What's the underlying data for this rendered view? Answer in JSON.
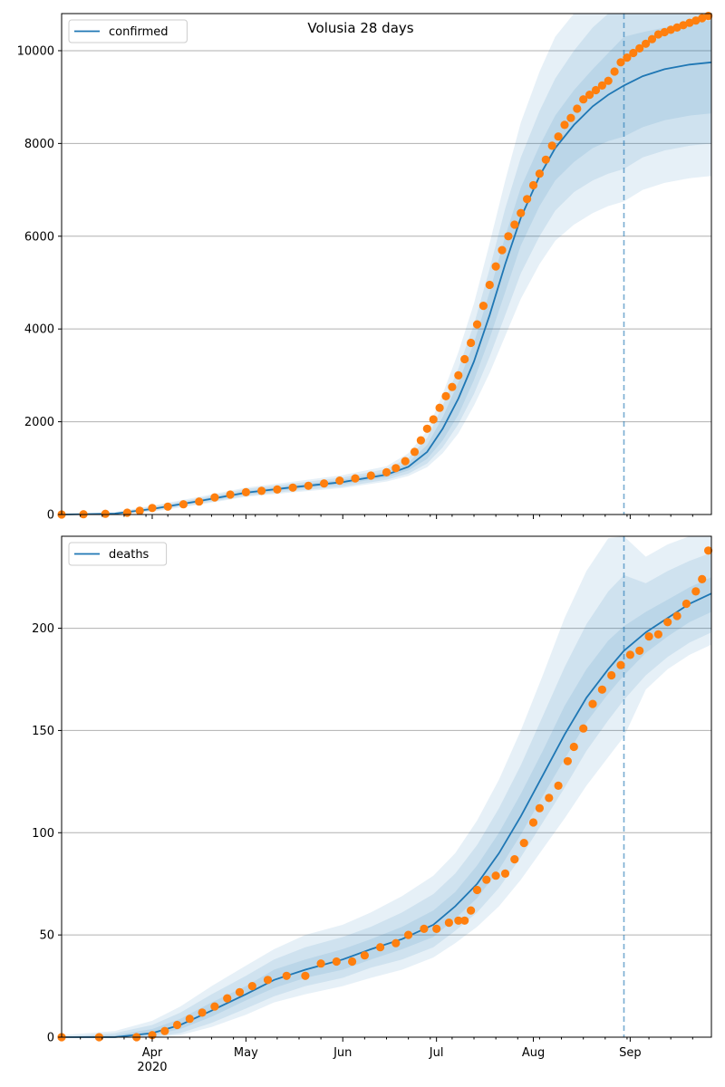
{
  "title": "Volusia 28 days",
  "colors": {
    "model_line": "#1f77b4",
    "observed": "#ff7f0e",
    "band": "#1f77b4",
    "grid": "#b0b0b0",
    "axis": "#000000"
  },
  "chart_data": [
    {
      "type": "line",
      "name": "confirmed",
      "legend": "confirmed",
      "legend_position": "top-left",
      "grid": "y",
      "xlim": [
        "2020-03-03",
        "2020-09-27"
      ],
      "ylim": [
        0,
        10800
      ],
      "yticks": [
        0,
        2000,
        4000,
        6000,
        8000,
        10000
      ],
      "ytick_labels": [
        "0",
        "2000",
        "4000",
        "6000",
        "8000",
        "10000"
      ],
      "forecast_start": "2020-08-30",
      "model": {
        "label": "confirmed",
        "x": [
          "2020-03-03",
          "2020-03-20",
          "2020-04-01",
          "2020-04-15",
          "2020-05-01",
          "2020-05-15",
          "2020-06-01",
          "2020-06-15",
          "2020-06-22",
          "2020-06-28",
          "2020-07-03",
          "2020-07-08",
          "2020-07-13",
          "2020-07-18",
          "2020-07-23",
          "2020-07-28",
          "2020-08-03",
          "2020-08-08",
          "2020-08-14",
          "2020-08-20",
          "2020-08-25",
          "2020-08-30",
          "2020-09-05",
          "2020-09-12",
          "2020-09-20",
          "2020-09-27"
        ],
        "y": [
          0,
          20,
          120,
          280,
          470,
          580,
          700,
          860,
          1030,
          1350,
          1850,
          2500,
          3300,
          4300,
          5400,
          6400,
          7300,
          7900,
          8400,
          8800,
          9050,
          9250,
          9450,
          9600,
          9700,
          9750
        ],
        "bands": [
          {
            "lower": [
              0,
              10,
              100,
              250,
              430,
              540,
              650,
              800,
              950,
              1200,
              1600,
              2150,
              2900,
              3800,
              4800,
              5800,
              6650,
              7200,
              7600,
              7900,
              8050,
              8150,
              8350,
              8500,
              8600,
              8650
            ],
            "upper": [
              0,
              30,
              140,
              310,
              510,
              620,
              750,
              920,
              1120,
              1500,
              2100,
              2850,
              3700,
              4800,
              6000,
              7050,
              7950,
              8600,
              9150,
              9600,
              9950,
              10300,
              10400,
              10500,
              10600,
              10650
            ]
          },
          {
            "lower": [
              0,
              5,
              80,
              220,
              400,
              500,
              600,
              750,
              880,
              1100,
              1450,
              1950,
              2600,
              3400,
              4300,
              5200,
              6000,
              6550,
              6950,
              7200,
              7350,
              7450,
              7700,
              7850,
              7950,
              8000
            ],
            "upper": [
              0,
              40,
              170,
              340,
              550,
              660,
              800,
              980,
              1220,
              1650,
              2350,
              3150,
              4100,
              5300,
              6600,
              7700,
              8700,
              9400,
              10000,
              10500,
              10800,
              10800,
              10800,
              10800,
              10800,
              10800
            ]
          },
          {
            "lower": [
              0,
              0,
              60,
              200,
              380,
              470,
              570,
              710,
              830,
              1020,
              1320,
              1750,
              2350,
              3050,
              3850,
              4650,
              5400,
              5900,
              6250,
              6500,
              6650,
              6750,
              7000,
              7150,
              7250,
              7300
            ],
            "upper": [
              0,
              50,
              190,
              370,
              580,
              700,
              850,
              1040,
              1320,
              1800,
              2600,
              3500,
              4550,
              5850,
              7200,
              8450,
              9550,
              10300,
              10800,
              10800,
              10800,
              10800,
              10800,
              10800,
              10800,
              10800
            ]
          }
        ]
      },
      "observed": {
        "label": "observed confirmed",
        "x": [
          "2020-03-03",
          "2020-03-10",
          "2020-03-17",
          "2020-03-24",
          "2020-03-28",
          "2020-04-01",
          "2020-04-06",
          "2020-04-11",
          "2020-04-16",
          "2020-04-21",
          "2020-04-26",
          "2020-05-01",
          "2020-05-06",
          "2020-05-11",
          "2020-05-16",
          "2020-05-21",
          "2020-05-26",
          "2020-05-31",
          "2020-06-05",
          "2020-06-10",
          "2020-06-15",
          "2020-06-18",
          "2020-06-21",
          "2020-06-24",
          "2020-06-26",
          "2020-06-28",
          "2020-06-30",
          "2020-07-02",
          "2020-07-04",
          "2020-07-06",
          "2020-07-08",
          "2020-07-10",
          "2020-07-12",
          "2020-07-14",
          "2020-07-16",
          "2020-07-18",
          "2020-07-20",
          "2020-07-22",
          "2020-07-24",
          "2020-07-26",
          "2020-07-28",
          "2020-07-30",
          "2020-08-01",
          "2020-08-03",
          "2020-08-05",
          "2020-08-07",
          "2020-08-09",
          "2020-08-11",
          "2020-08-13",
          "2020-08-15",
          "2020-08-17",
          "2020-08-19",
          "2020-08-21",
          "2020-08-23",
          "2020-08-25",
          "2020-08-27",
          "2020-08-29",
          "2020-08-31",
          "2020-09-02",
          "2020-09-04",
          "2020-09-06",
          "2020-09-08",
          "2020-09-10",
          "2020-09-12",
          "2020-09-14",
          "2020-09-16",
          "2020-09-18",
          "2020-09-20",
          "2020-09-22",
          "2020-09-24",
          "2020-09-26"
        ],
        "y": [
          0,
          5,
          15,
          40,
          80,
          140,
          170,
          220,
          280,
          370,
          430,
          480,
          510,
          540,
          580,
          620,
          670,
          730,
          780,
          840,
          910,
          1000,
          1150,
          1350,
          1600,
          1850,
          2050,
          2300,
          2550,
          2750,
          3000,
          3350,
          3700,
          4100,
          4500,
          4950,
          5350,
          5700,
          6000,
          6250,
          6500,
          6800,
          7100,
          7350,
          7650,
          7950,
          8150,
          8400,
          8550,
          8750,
          8950,
          9050,
          9150,
          9250,
          9350,
          9550,
          9750,
          9850,
          9950,
          10050,
          10150,
          10250,
          10350,
          10400,
          10450,
          10500,
          10550,
          10600,
          10650,
          10700,
          10750
        ]
      }
    },
    {
      "type": "line",
      "name": "deaths",
      "legend": "deaths",
      "legend_position": "top-left",
      "grid": "y",
      "xlim": [
        "2020-03-03",
        "2020-09-27"
      ],
      "ylim": [
        0,
        245
      ],
      "yticks": [
        0,
        50,
        100,
        150,
        200
      ],
      "ytick_labels": [
        "0",
        "50",
        "100",
        "150",
        "200"
      ],
      "xticks": [
        "2020-04-01",
        "2020-05-01",
        "2020-06-01",
        "2020-07-01",
        "2020-08-01",
        "2020-09-01"
      ],
      "xtick_labels": [
        "Apr\n2020",
        "May",
        "Jun",
        "Jul",
        "Aug",
        "Sep"
      ],
      "forecast_start": "2020-08-30",
      "model": {
        "label": "deaths",
        "x": [
          "2020-03-03",
          "2020-03-20",
          "2020-04-01",
          "2020-04-10",
          "2020-04-20",
          "2020-05-01",
          "2020-05-10",
          "2020-05-20",
          "2020-06-01",
          "2020-06-10",
          "2020-06-20",
          "2020-06-30",
          "2020-07-07",
          "2020-07-14",
          "2020-07-21",
          "2020-07-28",
          "2020-08-04",
          "2020-08-11",
          "2020-08-18",
          "2020-08-25",
          "2020-08-30",
          "2020-09-06",
          "2020-09-13",
          "2020-09-20",
          "2020-09-27"
        ],
        "y": [
          0,
          0,
          2,
          6,
          13,
          21,
          28,
          33,
          38,
          43,
          48,
          55,
          64,
          75,
          90,
          108,
          128,
          148,
          166,
          180,
          189,
          198,
          205,
          212,
          217
        ],
        "bands": [
          {
            "lower": [
              0,
              0,
              1,
              4,
              10,
              18,
              24,
              29,
              33,
              38,
              43,
              49,
              58,
              68,
              82,
              99,
              118,
              136,
              154,
              168,
              177,
              188,
              196,
              203,
              208
            ],
            "upper": [
              0,
              1,
              4,
              9,
              17,
              25,
              33,
              38,
              43,
              48,
              54,
              62,
              71,
              84,
              100,
              119,
              140,
              162,
              180,
              194,
              201,
              208,
              214,
              220,
              225
            ]
          },
          {
            "lower": [
              0,
              0,
              0,
              2,
              7,
              14,
              20,
              25,
              29,
              34,
              38,
              44,
              52,
              61,
              73,
              88,
              105,
              122,
              140,
              155,
              165,
              177,
              186,
              193,
              198
            ],
            "upper": [
              0,
              2,
              6,
              12,
              21,
              30,
              38,
              44,
              49,
              54,
              61,
              70,
              80,
              94,
              112,
              133,
              157,
              181,
              202,
              218,
              226,
              222,
              228,
              233,
              237
            ]
          },
          {
            "lower": [
              0,
              0,
              0,
              1,
              5,
              11,
              17,
              21,
              25,
              29,
              33,
              39,
              46,
              54,
              64,
              77,
              92,
              107,
              123,
              137,
              147,
              170,
              180,
              187,
              192
            ],
            "upper": [
              1,
              3,
              8,
              15,
              25,
              35,
              43,
              50,
              55,
              61,
              69,
              79,
              90,
              106,
              126,
              150,
              177,
              205,
              228,
              244,
              245,
              235,
              241,
              245,
              245
            ]
          }
        ]
      },
      "observed": {
        "label": "observed deaths",
        "x": [
          "2020-03-03",
          "2020-03-15",
          "2020-03-27",
          "2020-04-01",
          "2020-04-05",
          "2020-04-09",
          "2020-04-13",
          "2020-04-17",
          "2020-04-21",
          "2020-04-25",
          "2020-04-29",
          "2020-05-03",
          "2020-05-08",
          "2020-05-14",
          "2020-05-20",
          "2020-05-25",
          "2020-05-30",
          "2020-06-04",
          "2020-06-08",
          "2020-06-13",
          "2020-06-18",
          "2020-06-22",
          "2020-06-27",
          "2020-07-01",
          "2020-07-05",
          "2020-07-08",
          "2020-07-10",
          "2020-07-12",
          "2020-07-14",
          "2020-07-17",
          "2020-07-20",
          "2020-07-23",
          "2020-07-26",
          "2020-07-29",
          "2020-08-01",
          "2020-08-03",
          "2020-08-06",
          "2020-08-09",
          "2020-08-12",
          "2020-08-14",
          "2020-08-17",
          "2020-08-20",
          "2020-08-23",
          "2020-08-26",
          "2020-08-29",
          "2020-09-01",
          "2020-09-04",
          "2020-09-07",
          "2020-09-10",
          "2020-09-13",
          "2020-09-16",
          "2020-09-19",
          "2020-09-22",
          "2020-09-24",
          "2020-09-26"
        ],
        "y": [
          0,
          0,
          0,
          1,
          3,
          6,
          9,
          12,
          15,
          19,
          22,
          25,
          28,
          30,
          30,
          36,
          37,
          37,
          40,
          44,
          46,
          50,
          53,
          53,
          56,
          57,
          57,
          62,
          72,
          77,
          79,
          80,
          87,
          95,
          105,
          112,
          117,
          123,
          135,
          142,
          151,
          163,
          170,
          177,
          182,
          187,
          189,
          196,
          197,
          203,
          206,
          212,
          218,
          224,
          238
        ]
      }
    }
  ]
}
